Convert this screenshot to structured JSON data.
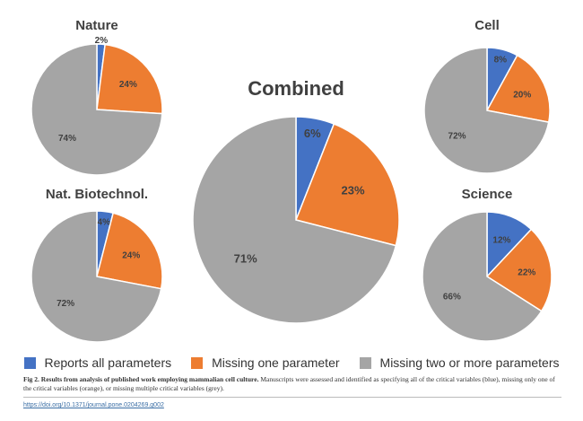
{
  "chart_data": [
    {
      "type": "pie",
      "title": "Nature",
      "categories": [
        "Reports all parameters",
        "Missing one parameter",
        "Missing two or more parameters"
      ],
      "values": [
        2,
        24,
        74
      ],
      "labels": [
        "2%",
        "24%",
        "74%"
      ]
    },
    {
      "type": "pie",
      "title": "Cell",
      "categories": [
        "Reports all parameters",
        "Missing one parameter",
        "Missing two or more parameters"
      ],
      "values": [
        8,
        20,
        72
      ],
      "labels": [
        "8%",
        "20%",
        "72%"
      ]
    },
    {
      "type": "pie",
      "title": "Combined",
      "categories": [
        "Reports all parameters",
        "Missing one parameter",
        "Missing two or more parameters"
      ],
      "values": [
        6,
        23,
        71
      ],
      "labels": [
        "6%",
        "23%",
        "71%"
      ]
    },
    {
      "type": "pie",
      "title": "Nat. Biotechnol.",
      "categories": [
        "Reports all parameters",
        "Missing one parameter",
        "Missing two or more parameters"
      ],
      "values": [
        4,
        24,
        72
      ],
      "labels": [
        "4%",
        "24%",
        "72%"
      ]
    },
    {
      "type": "pie",
      "title": "Science",
      "categories": [
        "Reports all parameters",
        "Missing one parameter",
        "Missing two or more parameters"
      ],
      "values": [
        12,
        22,
        66
      ],
      "labels": [
        "12%",
        "22%",
        "66%"
      ]
    }
  ],
  "legend": [
    {
      "label": "Reports all parameters",
      "color": "#4472C4"
    },
    {
      "label": "Missing one parameter",
      "color": "#ED7D31"
    },
    {
      "label": "Missing two or more parameters",
      "color": "#A5A5A5"
    }
  ],
  "caption": {
    "bold": "Fig 2. Results from analysis of published work employing mammalian cell culture.",
    "text": " Manuscripts were assessed and identified as specifying all of the critical variables (blue), missing only one of the critical variables (orange), or missing multiple critical variables (grey)."
  },
  "link": "https://doi.org/10.1371/journal.pone.0204269.g002"
}
